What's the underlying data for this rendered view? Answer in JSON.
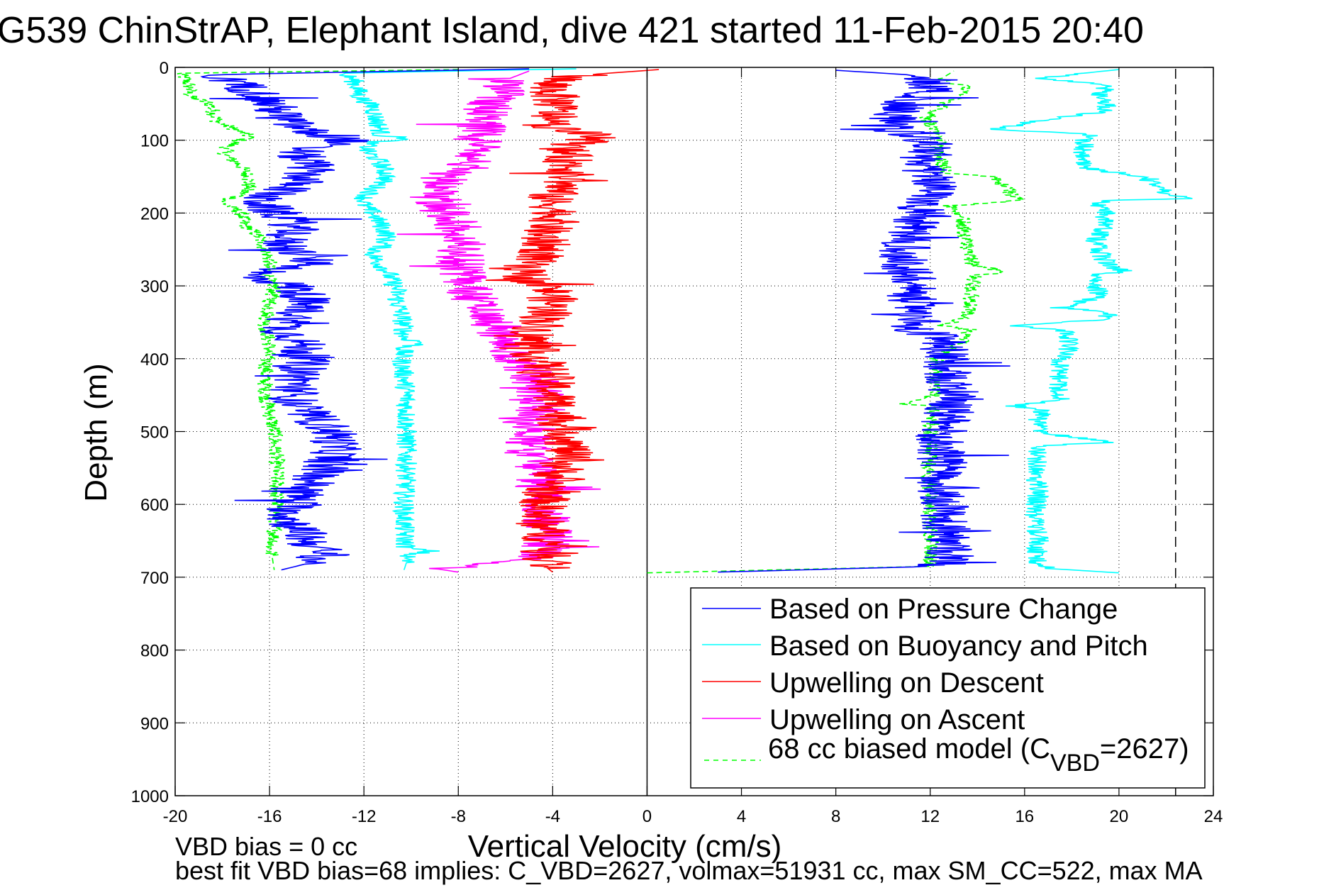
{
  "chart_data": {
    "type": "line",
    "title": "G539 ChinStrAP, Elephant Island, dive 421 started 11-Feb-2015 20:40",
    "xlabel": "Vertical Velocity (cm/s)",
    "ylabel": "Depth (m)",
    "xlim": [
      -20,
      24
    ],
    "ylim": [
      0,
      1000
    ],
    "y_reversed": true,
    "xticks": [
      -20,
      -16,
      -12,
      -8,
      -4,
      0,
      4,
      8,
      12,
      16,
      20,
      24
    ],
    "yticks": [
      0,
      100,
      200,
      300,
      400,
      500,
      600,
      700,
      800,
      900,
      1000
    ],
    "grid": true,
    "legend_position": "bottom-right",
    "reference_lines": [
      {
        "orientation": "vertical",
        "x": 0,
        "style": "solid",
        "color": "#000000"
      },
      {
        "orientation": "vertical",
        "x": 22.4,
        "style": "dashed",
        "color": "#000000"
      }
    ],
    "series": [
      {
        "name": "Based on Pressure Change",
        "color": "#0000ff",
        "style": "solid",
        "segments": [
          {
            "phase": "descent",
            "depth": [
              2,
              10,
              20,
              35,
              50,
              65,
              80,
              92,
              100,
              110,
              120,
              135,
              150,
              165,
              180,
              195,
              210,
              225,
              240,
              260,
              270,
              285,
              300,
              315,
              330,
              345,
              360,
              372,
              385,
              400,
              420,
              440,
              460,
              480,
              500,
              515,
              530,
              545,
              560,
              580,
              600,
              620,
              640,
              655,
              670,
              682,
              690
            ],
            "velocity": [
              -5,
              -18.5,
              -17.5,
              -16.5,
              -16,
              -15.5,
              -15,
              -14,
              -12.5,
              -14.5,
              -14.8,
              -14.2,
              -14.5,
              -15,
              -16.5,
              -16,
              -15,
              -15,
              -15.5,
              -14.5,
              -14,
              -17,
              -15,
              -14.5,
              -14.5,
              -15,
              -15.5,
              -14.8,
              -14.6,
              -14.5,
              -14.6,
              -14.9,
              -15,
              -14.2,
              -13.3,
              -13.2,
              -13.2,
              -13.6,
              -13.9,
              -14.5,
              -15,
              -15.2,
              -14.6,
              -14.2,
              -13.6,
              -14.5,
              -15.5
            ]
          },
          {
            "phase": "ascent",
            "depth": [
              693,
              685,
              670,
              650,
              620,
              600,
              580,
              550,
              520,
              500,
              470,
              450,
              420,
              400,
              385,
              370,
              360,
              340,
              320,
              300,
              280,
              260,
              240,
              220,
              200,
              185,
              170,
              150,
              130,
              115,
              100,
              85,
              70,
              55,
              40,
              30,
              20,
              10,
              4
            ],
            "velocity": [
              3,
              12.3,
              12.8,
              12.8,
              12.6,
              12.5,
              12.4,
              12.6,
              12.4,
              12.5,
              12.8,
              13,
              12.8,
              12.7,
              12.8,
              12.3,
              11.5,
              11.3,
              11.2,
              11.4,
              11.1,
              10.8,
              11,
              11.2,
              11.8,
              11.6,
              12.2,
              12.1,
              11.6,
              12,
              11.8,
              10.5,
              10.5,
              11,
              11.3,
              12.2,
              12,
              11,
              8
            ]
          }
        ]
      },
      {
        "name": "Based on Buoyancy and Pitch",
        "color": "#00ffff",
        "style": "solid",
        "segments": [
          {
            "phase": "descent",
            "depth": [
              2,
              8,
              15,
              25,
              40,
              55,
              70,
              85,
              93,
              98,
              103,
              115,
              130,
              150,
              165,
              180,
              190,
              200,
              215,
              230,
              245,
              255,
              265,
              280,
              295,
              305,
              320,
              340,
              360,
              372,
              378,
              385,
              400,
              450,
              500,
              550,
              600,
              640,
              660,
              664,
              670,
              680,
              690
            ],
            "velocity": [
              -3,
              -13,
              -12.5,
              -12.3,
              -12.2,
              -11.6,
              -11.5,
              -11.3,
              -11.3,
              -10,
              -11.8,
              -11.9,
              -11.3,
              -11,
              -11.5,
              -12,
              -12,
              -11.6,
              -11.3,
              -11,
              -11.2,
              -11.6,
              -11.5,
              -11,
              -10.8,
              -10.6,
              -10.6,
              -10.4,
              -10.3,
              -10.3,
              -9.5,
              -10.3,
              -10.4,
              -10.2,
              -10.2,
              -10.2,
              -10.3,
              -10.3,
              -10.2,
              -9.2,
              -10.2,
              -10.2,
              -10.3
            ]
          },
          {
            "phase": "ascent",
            "depth": [
              694,
              688,
              680,
              670,
              650,
              620,
              600,
              580,
              560,
              540,
              520,
              515,
              500,
              480,
              470,
              465,
              455,
              440,
              420,
              400,
              385,
              370,
              360,
              355,
              345,
              335,
              330,
              315,
              300,
              285,
              280,
              270,
              255,
              240,
              220,
              200,
              190,
              183,
              180,
              175,
              165,
              155,
              150,
              140,
              130,
              115,
              100,
              92,
              85,
              80,
              75,
              60,
              45,
              35,
              25,
              15,
              8,
              3
            ],
            "velocity": [
              20,
              17,
              16.6,
              16.5,
              16.6,
              16.4,
              16.5,
              16.6,
              16.4,
              16.5,
              16.5,
              19.5,
              16.5,
              16.6,
              16.8,
              15.5,
              17.6,
              17.4,
              17.5,
              17.5,
              17.9,
              17.8,
              17.6,
              15.5,
              19.7,
              19.3,
              17.5,
              19.2,
              19,
              19.1,
              20.2,
              19.5,
              19.2,
              19,
              19.3,
              19.4,
              19.2,
              19.2,
              23,
              22,
              21.8,
              21.3,
              21.2,
              18.8,
              18.6,
              18.5,
              18.5,
              18.7,
              14.6,
              15.5,
              16.3,
              19.5,
              19.4,
              19.2,
              19.6,
              16.5,
              18.5,
              20
            ]
          }
        ]
      },
      {
        "name": "Upwelling on Descent",
        "color": "#ff0000",
        "style": "solid",
        "segments": [
          {
            "phase": "descent",
            "depth": [
              3,
              10,
              20,
              35,
              50,
              65,
              80,
              90,
              95,
              100,
              110,
              125,
              140,
              160,
              180,
              200,
              215,
              230,
              245,
              260,
              275,
              285,
              295,
              305,
              320,
              335,
              350,
              365,
              380,
              400,
              420,
              440,
              460,
              480,
              500,
              520,
              540,
              560,
              580,
              600,
              620,
              640,
              660,
              675,
              688,
              693
            ],
            "velocity": [
              0.5,
              -2.5,
              -4.2,
              -4,
              -3.8,
              -4,
              -4.2,
              -2.8,
              -2.2,
              -2.4,
              -3.5,
              -3.4,
              -3.2,
              -3.5,
              -4.2,
              -3.8,
              -4,
              -4.5,
              -4.3,
              -4.5,
              -5.5,
              -5.2,
              -4.8,
              -4.1,
              -4,
              -4.2,
              -4.4,
              -4.8,
              -5,
              -4.6,
              -4.2,
              -4.1,
              -3.9,
              -3.7,
              -3.4,
              -3.3,
              -3.5,
              -3.8,
              -4.2,
              -4.4,
              -4.6,
              -4.3,
              -4.1,
              -3.9,
              -4.2,
              -4
            ]
          }
        ]
      },
      {
        "name": "Upwelling on Ascent",
        "color": "#ff00ff",
        "style": "solid",
        "segments": [
          {
            "phase": "ascent",
            "depth": [
              693,
              688,
              684,
              675,
              660,
              640,
              620,
              600,
              580,
              560,
              540,
              520,
              500,
              480,
              460,
              440,
              420,
              400,
              380,
              360,
              340,
              320,
              300,
              280,
              262,
              250,
              230,
              210,
              195,
              180,
              165,
              150,
              130,
              110,
              95,
              80,
              60,
              45,
              30,
              15,
              5
            ],
            "velocity": [
              -8,
              -9,
              -7,
              -4.8,
              -4.3,
              -4.2,
              -4.3,
              -4.4,
              -4.5,
              -4.6,
              -4.7,
              -5,
              -4.8,
              -4.6,
              -4.5,
              -4.5,
              -5,
              -5.5,
              -5.8,
              -6.2,
              -6.8,
              -7.3,
              -7.6,
              -7.8,
              -8,
              -7.8,
              -7.9,
              -8.2,
              -8.6,
              -9,
              -8.8,
              -8.5,
              -7.5,
              -7.3,
              -7.2,
              -7,
              -6.8,
              -6.4,
              -6.2,
              -5.8,
              -5
            ]
          }
        ]
      },
      {
        "name": "68 cc biased model (C_VBD=2627)",
        "color": "#00ff00",
        "style": "dashed",
        "segments": [
          {
            "phase": "descent",
            "depth": [
              3,
              8,
              15,
              25,
              40,
              50,
              60,
              75,
              90,
              97,
              100,
              110,
              120,
              135,
              150,
              165,
              175,
              185,
              200,
              215,
              230,
              250,
              265,
              280,
              295,
              300,
              315,
              340,
              360,
              380,
              400,
              430,
              460,
              500,
              540,
              580,
              620,
              650,
              660,
              670,
              690
            ],
            "velocity": [
              -8,
              -19.8,
              -19.6,
              -19.4,
              -19.4,
              -18.5,
              -18.4,
              -18.2,
              -17.1,
              -16.8,
              -17.3,
              -17.8,
              -17.9,
              -17.2,
              -16.9,
              -16.9,
              -17.2,
              -18,
              -17.2,
              -17.1,
              -16.5,
              -16.2,
              -16,
              -16.1,
              -16,
              -15.8,
              -15.9,
              -16.1,
              -16.2,
              -16,
              -16.1,
              -16.2,
              -16.1,
              -15.8,
              -15.7,
              -15.7,
              -15.7,
              -15.8,
              -16,
              -15.9,
              -15.8
            ]
          },
          {
            "phase": "ascent",
            "depth": [
              694,
              685,
              670,
              650,
              620,
              600,
              560,
              520,
              500,
              480,
              465,
              462,
              450,
              430,
              400,
              380,
              360,
              355,
              340,
              320,
              300,
              285,
              282,
              270,
              250,
              230,
              210,
              195,
              190,
              183,
              180,
              170,
              160,
              150,
              145,
              130,
              115,
              100,
              90,
              80,
              70,
              55,
              45,
              35,
              25,
              15,
              5
            ],
            "velocity": [
              0,
              12.1,
              12,
              12.1,
              12,
              12,
              12,
              12,
              12,
              12.1,
              12.2,
              10.8,
              12.2,
              12.2,
              12.3,
              13.2,
              13.7,
              12.5,
              13.6,
              13.7,
              13.8,
              13.9,
              15.3,
              13.8,
              13.6,
              13.5,
              13.4,
              13.2,
              12.8,
              15.8,
              15.6,
              15.3,
              15,
              14.8,
              12.6,
              12.5,
              12.3,
              12.4,
              12.2,
              12,
              11.8,
              12.5,
              12.8,
              13.5,
              13.4,
              12.5,
              13
            ]
          }
        ]
      }
    ],
    "legend": [
      {
        "label": "Based on Pressure Change",
        "color": "#0000ff",
        "style": "solid"
      },
      {
        "label": "Based on Buoyancy and Pitch",
        "color": "#00ffff",
        "style": "solid"
      },
      {
        "label": "Upwelling on Descent",
        "color": "#ff0000",
        "style": "solid"
      },
      {
        "label": "Upwelling on Ascent",
        "color": "#ff00ff",
        "style": "solid"
      },
      {
        "label_main": "68 cc biased model (C",
        "label_sub": "VBD",
        "label_tail": "=2627)",
        "color": "#00ff00",
        "style": "dashed"
      }
    ],
    "annotations": [
      "VBD bias = 0 cc",
      "best fit VBD bias=68 implies: C_VBD=2627, volmax=51931 cc, max SM_CC=522, max MA"
    ]
  }
}
